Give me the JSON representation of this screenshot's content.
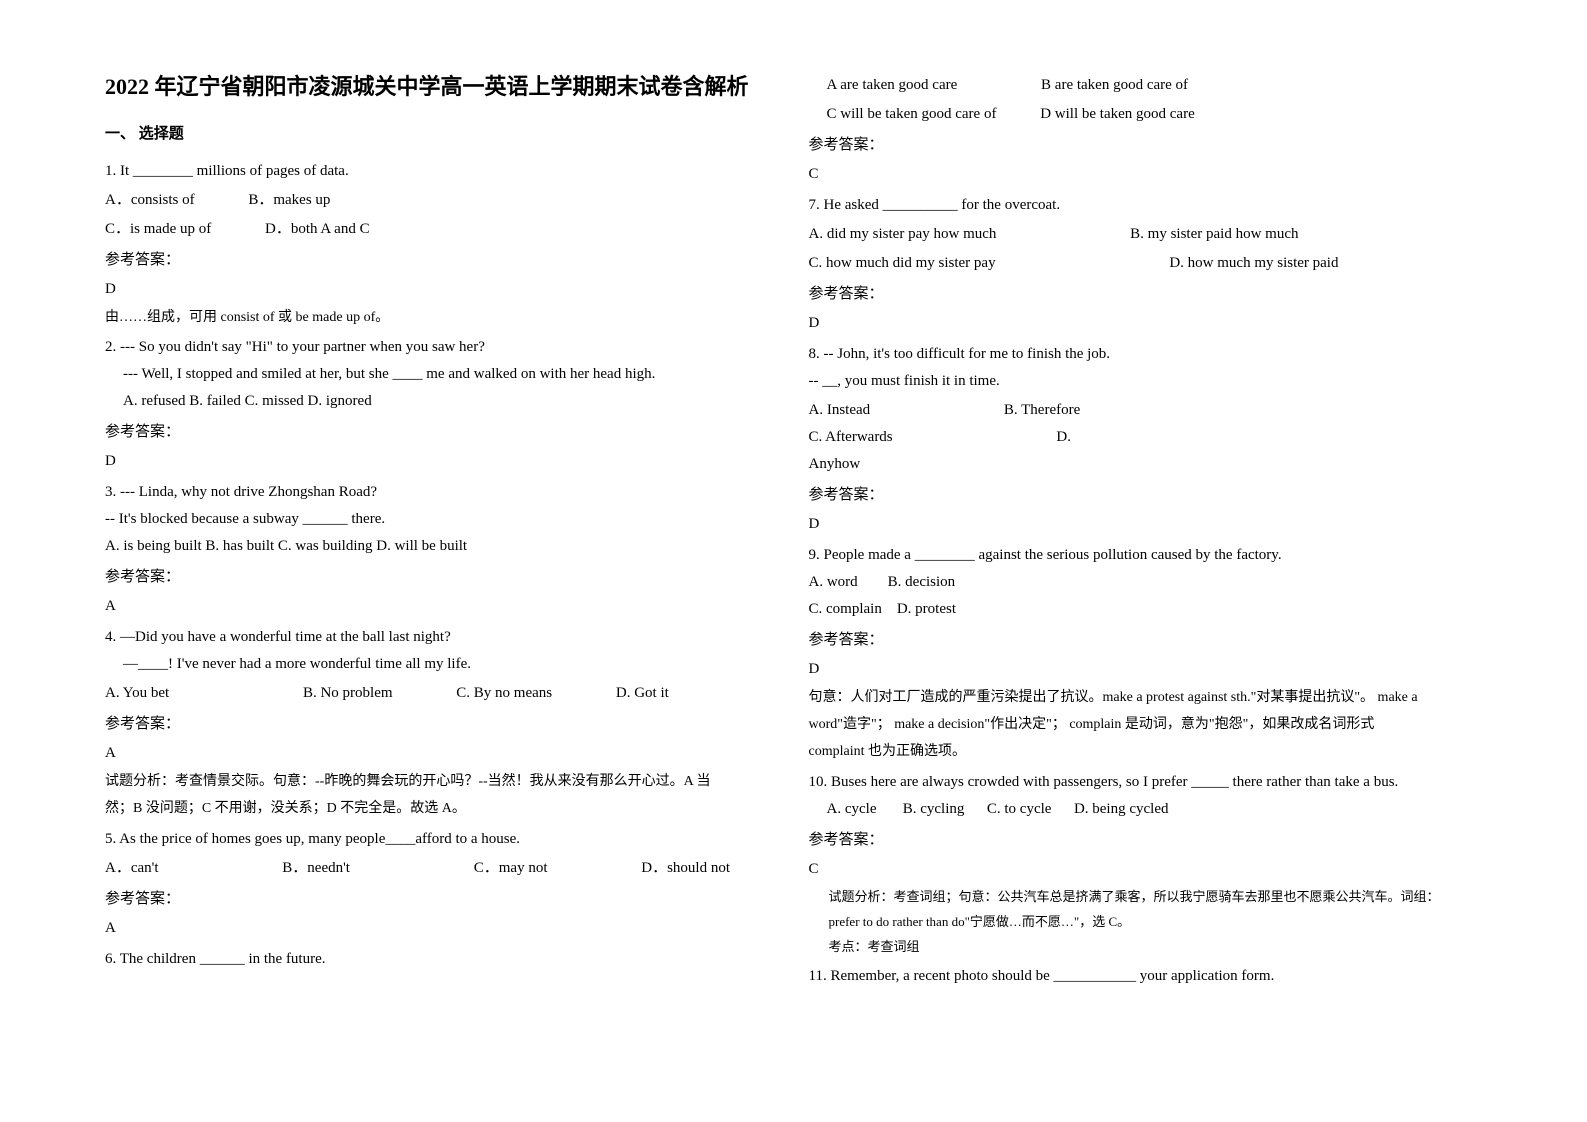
{
  "title": "2022 年辽宁省朝阳市凌源城关中学高一英语上学期期末试卷含解析",
  "section1": "一、 选择题",
  "answerLabel": "参考答案：",
  "q1": {
    "stem": "1. It ________ millions of pages of data.",
    "optA": "A．consists of",
    "optB": "B．makes up",
    "optC": "C．is made up of",
    "optD": "D．both A and C",
    "ans": "D",
    "explain": "由……组成，可用 consist of 或 be made up of。"
  },
  "q2": {
    "line1": "2. --- So you didn't say \"Hi\" to your partner when you saw her?",
    "line2": "--- Well, I stopped and smiled at her, but she ____ me and walked on with her head high.",
    "opts": "A. refused   B. failed   C. missed   D. ignored",
    "ans": "D"
  },
  "q3": {
    "line1": "3. --- Linda, why not drive Zhongshan Road?",
    "line2": "-- It's blocked because a subway ______ there.",
    "opts": "A. is being built B. has built     C. was building  D. will be built",
    "ans": "A"
  },
  "q4": {
    "line1": "4. —Did you have a wonderful time at the ball last night?",
    "line2": "—____! I've never had a more wonderful time all my life.",
    "optA": "A. You bet",
    "optB": "B. No problem",
    "optC": "C. By no means",
    "optD": "D. Got it",
    "ans": "A",
    "explain1": "试题分析：考查情景交际。句意：--昨晚的舞会玩的开心吗？--当然！我从来没有那么开心过。A 当",
    "explain2": "然；B 没问题；C 不用谢，没关系；D 不完全是。故选 A。"
  },
  "q5": {
    "stem": "5. As the price of homes goes up, many people____afford to a house.",
    "optA": "A．can't",
    "optB": "B．needn't",
    "optC": "C．may not",
    "optD": "D．should not",
    "ans": "A"
  },
  "q6": {
    "stem": "6. The children ______ in the future.",
    "optA": "A are taken good care",
    "optB": "B are taken good care of",
    "optC": "C will be taken good care of",
    "optD": "D will be taken good care",
    "ans": "C"
  },
  "q7": {
    "stem": "7. He asked __________ for the overcoat.",
    "optA": "A. did my sister pay how much",
    "optB": "B. my sister paid how much",
    "optC": "C. how much did my sister pay",
    "optD": "D. how much my sister paid",
    "ans": "D"
  },
  "q8": {
    "line1": "8. -- John, it's too difficult for me to finish the job.",
    "line2": "-- __, you must finish it in time.",
    "optA": "A. Instead",
    "optB": "B. Therefore",
    "optC": "C. Afterwards",
    "optD": "D.",
    "optD2": "Anyhow",
    "ans": "D"
  },
  "q9": {
    "stem": "9. People made a ________ against the serious pollution caused by the factory.",
    "optsAB": "A. word        B. decision",
    "optsCD": "C. complain    D. protest",
    "ans": "D",
    "explain1": "句意：人们对工厂造成的严重污染提出了抗议。make a protest against sth.\"对某事提出抗议\"。 make a",
    "explain2": "word\"造字\"；  make a decision\"作出决定\"；  complain 是动词，意为\"抱怨\"，如果改成名词形式",
    "explain3": "complaint 也为正确选项。"
  },
  "q10": {
    "stem": "10. Buses here are always crowded with passengers, so I prefer _____ there rather than take a bus.",
    "opts": "A. cycle       B. cycling      C. to cycle      D. being cycled",
    "ans": "C",
    "explain1": "试题分析：考查词组；句意：公共汽车总是挤满了乘客，所以我宁愿骑车去那里也不愿乘公共汽车。词组：",
    "explain2": "prefer to do rather than do\"宁愿做…而不愿…\"，选 C。",
    "explain3": "考点：考查词组"
  },
  "q11": {
    "stem": "11. Remember, a recent photo should be ___________ your application form."
  }
}
